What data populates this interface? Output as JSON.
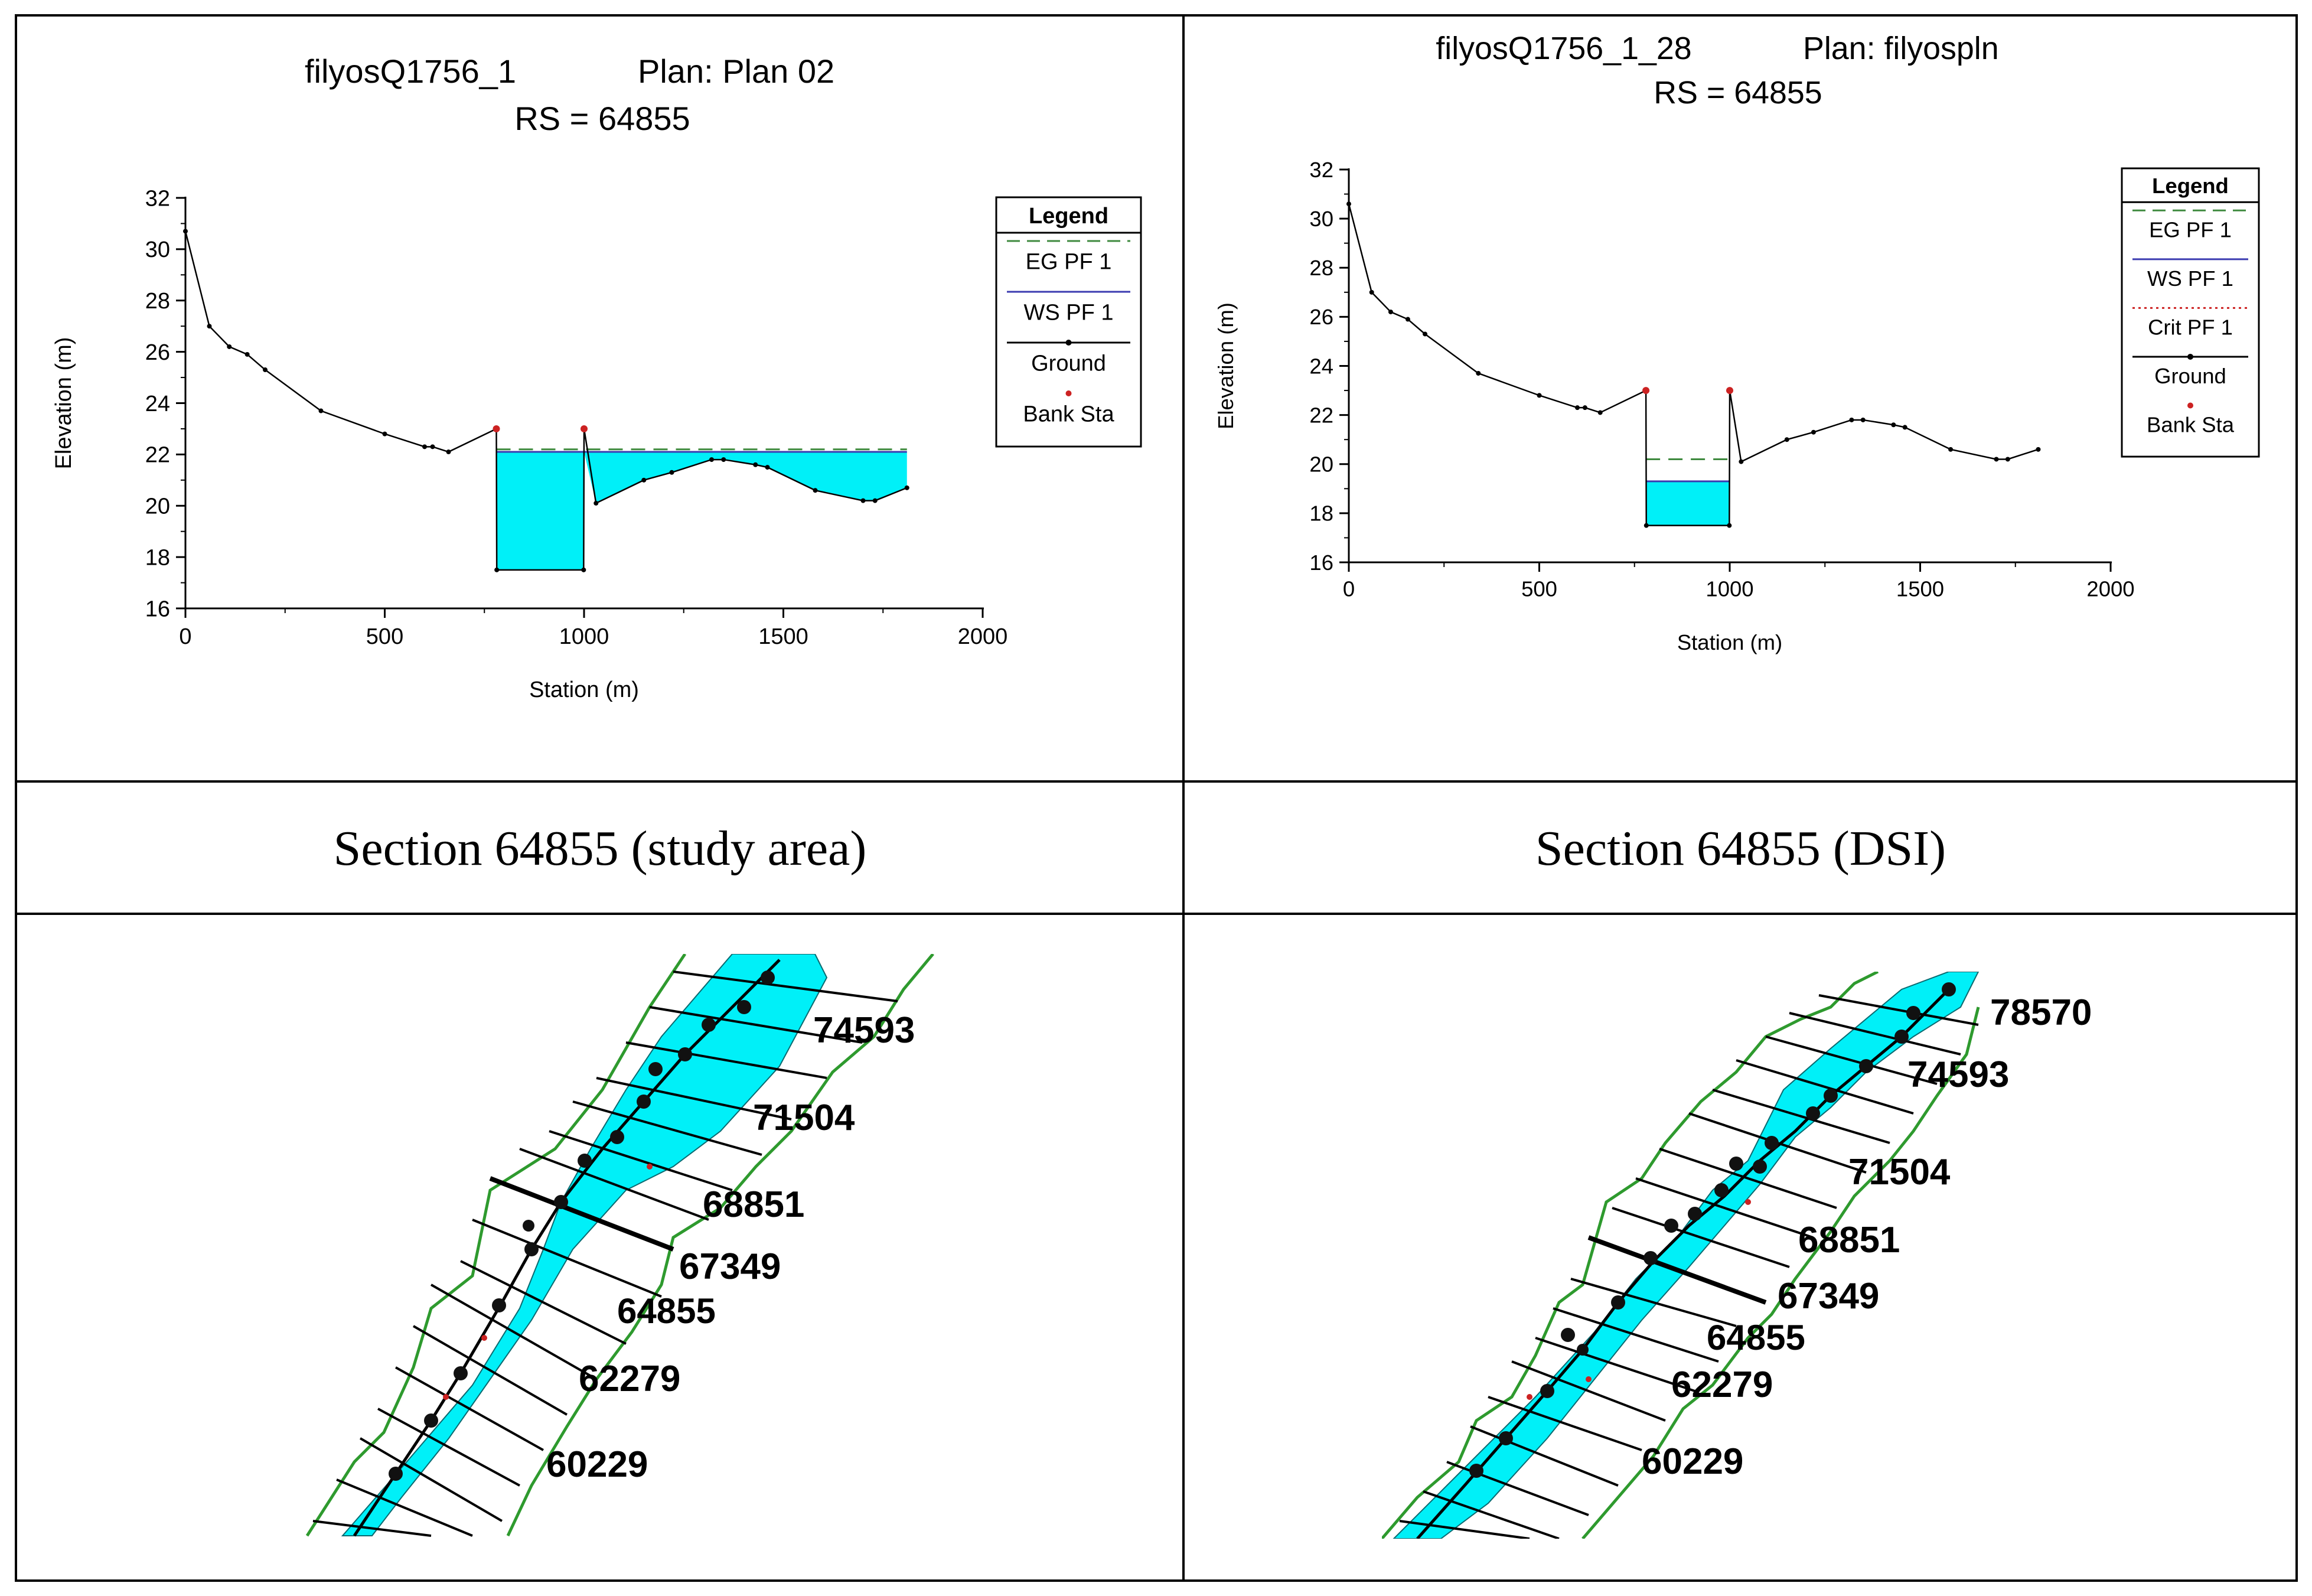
{
  "chart_data": [
    {
      "type": "area",
      "title": "filyosQ1756_1",
      "plan": "Plan: Plan 02",
      "subtitle": "RS = 64855",
      "xlabel": "Station (m)",
      "ylabel": "Elevation (m)",
      "xlim": [
        0,
        2000
      ],
      "ylim": [
        16,
        32
      ],
      "xticks": [
        "0",
        "500",
        "1000",
        "1500",
        "2000"
      ],
      "yticks": [
        "16",
        "18",
        "20",
        "22",
        "24",
        "26",
        "28",
        "30",
        "32"
      ],
      "ground": {
        "x": [
          0,
          60,
          110,
          155,
          200,
          340,
          500,
          600,
          620,
          660,
          780,
          781,
          999,
          1000,
          1030,
          1150,
          1220,
          1320,
          1350,
          1430,
          1460,
          1580,
          1700,
          1730,
          1810
        ],
        "y": [
          30.7,
          27.0,
          26.2,
          25.9,
          25.3,
          23.7,
          22.8,
          22.3,
          22.3,
          22.1,
          23.0,
          17.5,
          17.5,
          23.0,
          20.1,
          21.0,
          21.3,
          21.8,
          21.8,
          21.6,
          21.5,
          20.6,
          20.2,
          20.2,
          20.7
        ]
      },
      "water": {
        "ws": 22.1,
        "eg": 22.2,
        "from": 780,
        "to": 1810
      },
      "bank_sta": [
        [
          780,
          23.0
        ],
        [
          1000,
          23.0
        ]
      ],
      "legend": {
        "title": "Legend",
        "items": [
          "EG PF 1",
          "WS PF 1",
          "Ground",
          "Bank Sta"
        ],
        "colors": [
          "#3f8a3f",
          "#3b3bb0",
          "#000000",
          "#cc2222"
        ],
        "styles": [
          "dash",
          "solid",
          "solid-dot",
          "dot"
        ]
      }
    },
    {
      "type": "area",
      "title": "filyosQ1756_1_28",
      "plan": "Plan: filyospln",
      "subtitle": "RS = 64855",
      "xlabel": "Station (m)",
      "ylabel": "Elevation (m)",
      "xlim": [
        0,
        2000
      ],
      "ylim": [
        16,
        32
      ],
      "xticks": [
        "0",
        "500",
        "1000",
        "1500",
        "2000"
      ],
      "yticks": [
        "16",
        "18",
        "20",
        "22",
        "24",
        "26",
        "28",
        "30",
        "32"
      ],
      "ground": {
        "x": [
          0,
          60,
          110,
          155,
          200,
          340,
          500,
          600,
          620,
          660,
          780,
          781,
          999,
          1000,
          1030,
          1150,
          1220,
          1320,
          1350,
          1430,
          1460,
          1580,
          1700,
          1730,
          1810
        ],
        "y": [
          30.6,
          27.0,
          26.2,
          25.9,
          25.3,
          23.7,
          22.8,
          22.3,
          22.3,
          22.1,
          23.0,
          17.5,
          17.5,
          23.0,
          20.1,
          21.0,
          21.3,
          21.8,
          21.8,
          21.6,
          21.5,
          20.6,
          20.2,
          20.2,
          20.6
        ]
      },
      "water": {
        "ws": 19.3,
        "eg": 20.2,
        "from": 780,
        "to": 1000
      },
      "bank_sta": [
        [
          780,
          23.0
        ],
        [
          1000,
          23.0
        ]
      ],
      "legend": {
        "title": "Legend",
        "items": [
          "EG PF 1",
          "WS PF 1",
          "Crit PF 1",
          "Ground",
          "Bank Sta"
        ],
        "colors": [
          "#3f8a3f",
          "#3b3bb0",
          "#cc2222",
          "#000000",
          "#cc2222"
        ],
        "styles": [
          "dash",
          "solid",
          "dotted",
          "solid-dot",
          "dot"
        ]
      }
    }
  ],
  "captions": {
    "left": "Section 64855 (study area)",
    "right": "Section 64855 (DSI)"
  },
  "maps": {
    "left": {
      "labels": [
        "74593",
        "71504",
        "68851",
        "67349",
        "64855",
        "62279",
        "60229"
      ]
    },
    "right": {
      "labels": [
        "78570",
        "74593",
        "71504",
        "68851",
        "67349",
        "64855",
        "62279",
        "60229"
      ]
    }
  },
  "colors": {
    "water": "#00f0f8",
    "ground": "#000000",
    "bank": "#cc2222",
    "map_boundary": "#2e9a2e"
  }
}
